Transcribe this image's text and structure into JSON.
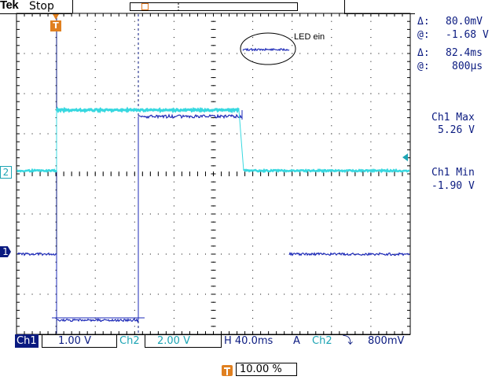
{
  "header": {
    "brand": "Tek",
    "status": "Stop"
  },
  "readouts": {
    "delta_v_label": "Δ:",
    "delta_v_value": "80.0mV",
    "at_v_label": "@:",
    "at_v_value": "-1.68 V",
    "delta_t_label": "Δ:",
    "delta_t_value": "82.4ms",
    "at_t_label": "@:",
    "at_t_value": "800µs",
    "meas1_title": "Ch1 Max",
    "meas1_value": "5.26 V",
    "meas2_title": "Ch1 Min",
    "meas2_value": "-1.90 V"
  },
  "markers": {
    "ch2": "2",
    "ch1": "1",
    "trigger": "T"
  },
  "annotation": {
    "text": "LED ein"
  },
  "bottom_bar": {
    "ch1_label": "Ch1",
    "ch1_scale": "1.00 V",
    "ch2_label": "Ch2",
    "ch2_scale": "2.00 V",
    "timebase": "H 40.0ms",
    "acq_mode": "A",
    "trig_source": "Ch2",
    "trig_slope": "⤵",
    "trig_level": "800mV"
  },
  "trigger_position": {
    "value": "10.00 %"
  },
  "colors": {
    "ch1": "#1e2bb8",
    "ch2": "#38d8e0",
    "grid": "#000000",
    "readout_text": "#0a1a80",
    "trigger": "#e08020"
  }
}
